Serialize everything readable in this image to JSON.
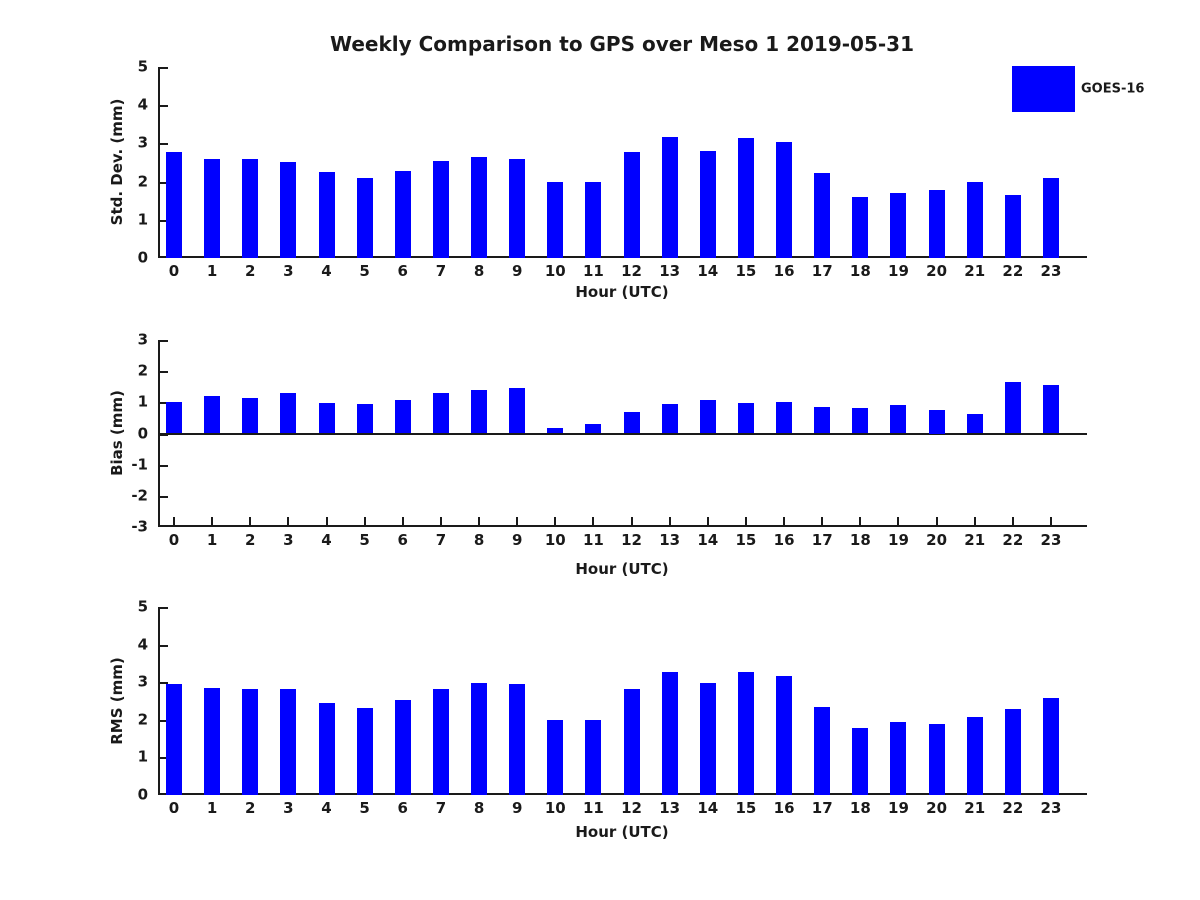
{
  "title": "Weekly Comparison to GPS over Meso 1 2019-05-31",
  "legend": {
    "label": "GOES-16",
    "color": "#0000ff"
  },
  "chart_data": [
    {
      "type": "bar",
      "title": "",
      "ylabel": "Std. Dev. (mm)",
      "xlabel": "Hour (UTC)",
      "series_name": "GOES-16",
      "bar_color": "#0000ff",
      "grid": false,
      "ylim": [
        0,
        5
      ],
      "yticks": [
        0,
        1,
        2,
        3,
        4,
        5
      ],
      "categories": [
        "0",
        "1",
        "2",
        "3",
        "4",
        "5",
        "6",
        "7",
        "8",
        "9",
        "10",
        "11",
        "12",
        "13",
        "14",
        "15",
        "16",
        "17",
        "18",
        "19",
        "20",
        "21",
        "22",
        "23"
      ],
      "values": [
        2.77,
        2.58,
        2.58,
        2.51,
        2.25,
        2.09,
        2.27,
        2.53,
        2.64,
        2.58,
        2.0,
        1.98,
        2.77,
        3.16,
        2.79,
        3.13,
        3.03,
        2.22,
        1.6,
        1.7,
        1.78,
        2.0,
        1.65,
        2.1
      ]
    },
    {
      "type": "bar",
      "title": "",
      "ylabel": "Bias (mm)",
      "xlabel": "Hour (UTC)",
      "series_name": "GOES-16",
      "bar_color": "#0000ff",
      "grid": false,
      "ylim": [
        -3,
        3
      ],
      "yticks": [
        3,
        2,
        1,
        0,
        -1,
        -2,
        -3
      ],
      "categories": [
        "0",
        "1",
        "2",
        "3",
        "4",
        "5",
        "6",
        "7",
        "8",
        "9",
        "10",
        "11",
        "12",
        "13",
        "14",
        "15",
        "16",
        "17",
        "18",
        "19",
        "20",
        "21",
        "22",
        "23"
      ],
      "values": [
        1.0,
        1.19,
        1.13,
        1.29,
        0.97,
        0.94,
        1.06,
        1.29,
        1.39,
        1.45,
        0.18,
        0.31,
        0.68,
        0.94,
        1.06,
        0.97,
        1.0,
        0.85,
        0.83,
        0.9,
        0.75,
        0.62,
        1.65,
        1.57
      ]
    },
    {
      "type": "bar",
      "title": "",
      "ylabel": "RMS (mm)",
      "xlabel": "Hour (UTC)",
      "series_name": "GOES-16",
      "bar_color": "#0000ff",
      "grid": false,
      "ylim": [
        0,
        5
      ],
      "yticks": [
        0,
        1,
        2,
        3,
        4,
        5
      ],
      "categories": [
        "0",
        "1",
        "2",
        "3",
        "4",
        "5",
        "6",
        "7",
        "8",
        "9",
        "10",
        "11",
        "12",
        "13",
        "14",
        "15",
        "16",
        "17",
        "18",
        "19",
        "20",
        "21",
        "22",
        "23"
      ],
      "values": [
        2.95,
        2.84,
        2.81,
        2.81,
        2.45,
        2.31,
        2.52,
        2.83,
        2.98,
        2.95,
        2.0,
        2.0,
        2.83,
        3.27,
        2.98,
        3.27,
        3.17,
        2.35,
        1.78,
        1.93,
        1.9,
        2.08,
        2.3,
        2.58
      ]
    }
  ]
}
